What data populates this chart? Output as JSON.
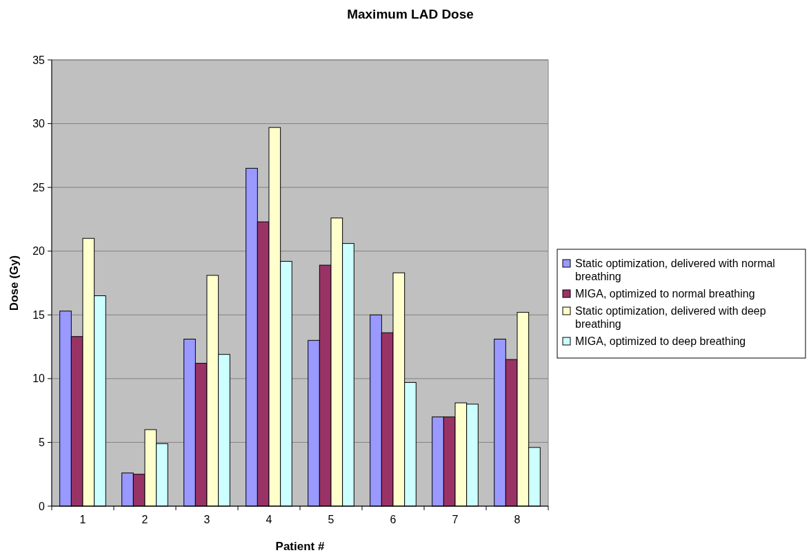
{
  "chart_data": {
    "type": "bar",
    "title": "Maximum LAD Dose",
    "xlabel": "Patient #",
    "ylabel": "Dose (Gy)",
    "categories": [
      "1",
      "2",
      "3",
      "4",
      "5",
      "6",
      "7",
      "8"
    ],
    "series": [
      {
        "name": "Static optimization, delivered with normal breathing",
        "color": "#9999ff",
        "values": [
          15.3,
          2.6,
          13.1,
          26.5,
          13.0,
          15.0,
          7.0,
          13.1
        ]
      },
      {
        "name": "MIGA, optimized to normal breathing",
        "color": "#993366",
        "values": [
          13.3,
          2.5,
          11.2,
          22.3,
          18.9,
          13.6,
          7.0,
          11.5
        ]
      },
      {
        "name": "Static optimization, delivered with deep breathing",
        "color": "#ffffcc",
        "values": [
          21.0,
          6.0,
          18.1,
          29.7,
          22.6,
          18.3,
          8.1,
          15.2
        ]
      },
      {
        "name": "MIGA, optimized to deep breathing",
        "color": "#ccffff",
        "values": [
          16.5,
          4.9,
          11.9,
          19.2,
          20.6,
          9.7,
          8.0,
          4.6
        ]
      }
    ],
    "ylim": [
      0,
      35
    ],
    "yticks": [
      0,
      5,
      10,
      15,
      20,
      25,
      30,
      35
    ],
    "grid": "y",
    "legend": "right"
  }
}
